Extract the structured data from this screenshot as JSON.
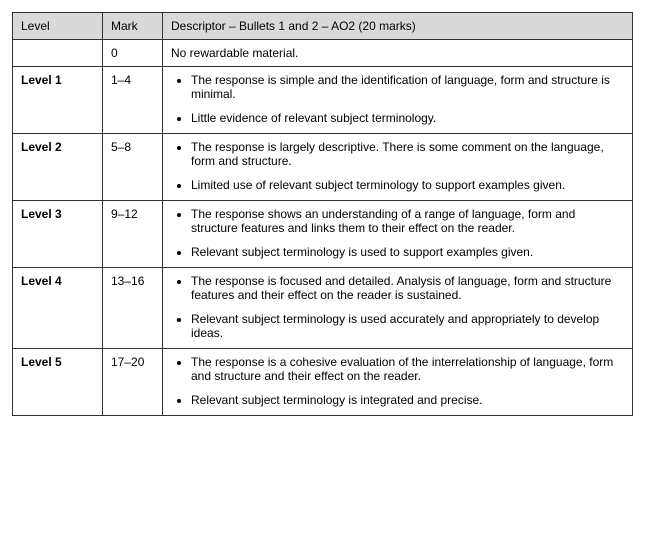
{
  "table": {
    "headers": {
      "level": "Level",
      "mark": "Mark",
      "descriptor": "Descriptor – Bullets 1 and 2 – AO2 (20 marks)"
    },
    "zero": {
      "level": "",
      "mark": "0",
      "descriptor": "No rewardable material."
    },
    "rows": [
      {
        "level": "Level 1",
        "mark": "1–4",
        "bullets": [
          "The response is simple and the identification of language, form and structure is minimal.",
          "Little evidence of relevant subject terminology."
        ]
      },
      {
        "level": "Level 2",
        "mark": "5–8",
        "bullets": [
          "The response is largely descriptive. There is some comment on the language, form and structure.",
          "Limited use of relevant subject terminology to support examples given."
        ]
      },
      {
        "level": "Level 3",
        "mark": "9–12",
        "bullets": [
          "The response shows an understanding of a range of language, form and structure features and links them to their effect on the reader.",
          "Relevant subject terminology is used to support examples given."
        ]
      },
      {
        "level": "Level 4",
        "mark": "13–16",
        "bullets": [
          "The response is focused and detailed. Analysis of language, form and structure features and their effect on the reader is sustained.",
          "Relevant subject terminology is used accurately and appropriately to develop ideas."
        ]
      },
      {
        "level": "Level 5",
        "mark": "17–20",
        "bullets": [
          "The response is a cohesive evaluation of the interrelationship of language, form and structure and their effect on the reader.",
          "Relevant subject terminology is integrated and precise."
        ]
      }
    ]
  }
}
